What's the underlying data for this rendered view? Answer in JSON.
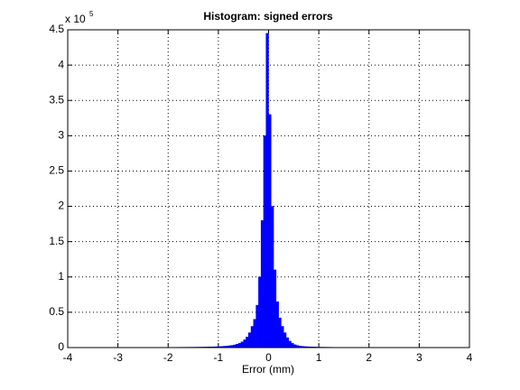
{
  "chart_data": {
    "type": "histogram",
    "title": "Histogram: signed errors",
    "x_label": "Error (mm)",
    "y_multiplier": {
      "base": "x 10",
      "exponent": "5"
    },
    "color": "#0000ff",
    "grid": true,
    "xlim": [
      -4,
      4
    ],
    "xticks": [
      -4,
      -3,
      -2,
      -1,
      0,
      1,
      2,
      3,
      4
    ],
    "ylim": [
      0,
      450000
    ],
    "yticks": [
      0,
      {
        "value": 50000,
        "label": "0.5"
      },
      {
        "value": 100000,
        "label": "1"
      },
      {
        "value": 150000,
        "label": "1.5"
      },
      {
        "value": 200000,
        "label": "2"
      },
      {
        "value": 250000,
        "label": "2.5"
      },
      {
        "value": 300000,
        "label": "3"
      },
      {
        "value": 350000,
        "label": "3.5"
      },
      {
        "value": 400000,
        "label": "4"
      },
      {
        "value": 450000,
        "label": "4.5"
      }
    ],
    "bins": [
      -2,
      -1.95,
      -1.9,
      -1.85,
      -1.8,
      -1.75,
      -1.7,
      -1.65,
      -1.6,
      -1.55,
      -1.5,
      -1.45,
      -1.4,
      -1.35,
      -1.3,
      -1.25,
      -1.2,
      -1.15,
      -1.1,
      -1.05,
      -1,
      -0.95,
      -0.9,
      -0.85,
      -0.8,
      -0.75,
      -0.7,
      -0.65,
      -0.6,
      -0.55,
      -0.5,
      -0.45,
      -0.4,
      -0.35,
      -0.3,
      -0.25,
      -0.2,
      -0.15,
      -0.1,
      -0.05,
      0,
      0.05,
      0.1,
      0.15,
      0.2,
      0.25,
      0.3,
      0.35,
      0.4,
      0.45,
      0.5,
      0.55,
      0.6,
      0.65,
      0.7,
      0.75,
      0.8,
      0.85,
      0.9,
      0.95,
      1,
      1.05,
      1.1,
      1.15,
      1.2,
      1.25,
      1.3,
      1.35,
      1.4
    ],
    "values": [
      300,
      300,
      350,
      350,
      400,
      400,
      450,
      450,
      500,
      500,
      550,
      600,
      650,
      700,
      750,
      800,
      900,
      1000,
      1100,
      1200,
      1400,
      1600,
      1900,
      2200,
      2600,
      3100,
      3800,
      4800,
      6000,
      8000,
      11000,
      15000,
      21000,
      30000,
      40000,
      60000,
      100000,
      180000,
      300000,
      445000,
      330000,
      200000,
      110000,
      65000,
      42000,
      30000,
      21000,
      14000,
      9000,
      6000,
      4000,
      3000,
      2200,
      1700,
      1400,
      1200,
      1000,
      900,
      800,
      700,
      600,
      550,
      500,
      450,
      400,
      350,
      300,
      300
    ]
  }
}
